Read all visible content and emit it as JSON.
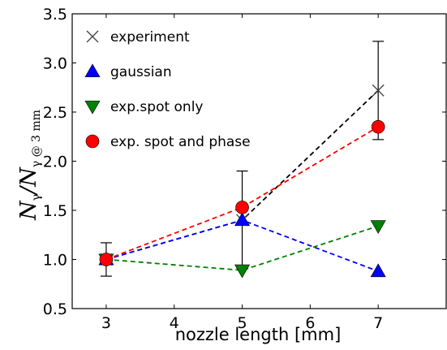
{
  "chart_data": {
    "type": "line",
    "title": "",
    "xlabel": "nozzle length [mm]",
    "ylabel": {
      "main": "N",
      "sub": "γ",
      "slash": "/",
      "den": "N",
      "den_sub": "γ @ 3 mm"
    },
    "xlim": [
      2.5,
      8.0
    ],
    "ylim": [
      0.5,
      3.5
    ],
    "xticks": [
      3,
      4,
      5,
      6,
      7
    ],
    "yticks": [
      "0.5",
      "1.0",
      "1.5",
      "2.0",
      "2.5",
      "3.0",
      "3.5"
    ],
    "grid": false,
    "legend_position": "top-left",
    "series": [
      {
        "name": "experiment",
        "marker": "x",
        "color": "#000000",
        "marker_color": "#444444",
        "x": [
          3,
          5,
          7
        ],
        "y": [
          1.0,
          1.4,
          2.72
        ],
        "yerr_low": [
          0.17,
          0.49,
          0.5
        ],
        "yerr_high": [
          0.17,
          0.5,
          0.5
        ]
      },
      {
        "name": "gaussian",
        "marker": "triangle-up",
        "color": "#0000ff",
        "x": [
          3,
          5,
          7
        ],
        "y": [
          1.0,
          1.4,
          0.88
        ]
      },
      {
        "name": "exp.spot only",
        "marker": "triangle-down",
        "color": "#008000",
        "x": [
          3,
          5,
          7
        ],
        "y": [
          1.0,
          0.89,
          1.34
        ]
      },
      {
        "name": "exp. spot and phase",
        "marker": "circle",
        "color": "#ff0000",
        "x": [
          3,
          5,
          7
        ],
        "y": [
          1.0,
          1.53,
          2.35
        ]
      }
    ]
  }
}
